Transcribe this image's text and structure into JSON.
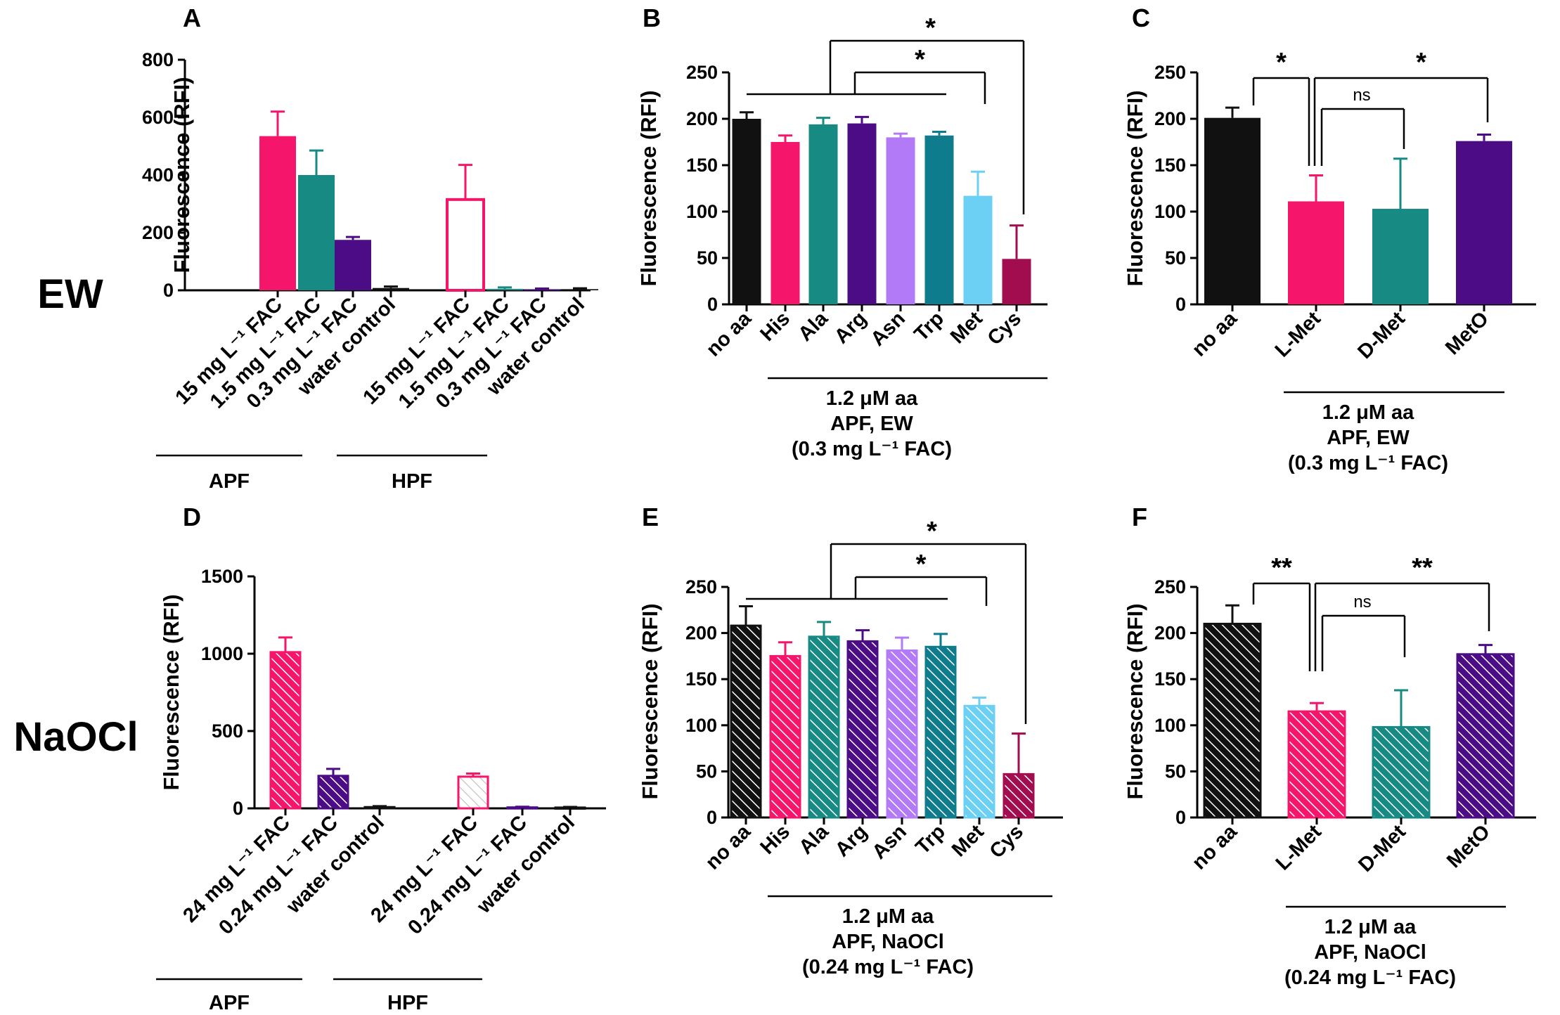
{
  "row_labels": {
    "top": "EW",
    "bottom": "NaOCl"
  },
  "colors": {
    "black": "#111111",
    "pink": "#f5166b",
    "teal": "#178a83",
    "purple": "#4b0c86",
    "lavender": "#b37af7",
    "darkteal": "#0e7c8c",
    "skyblue": "#6cd0f5",
    "maroon": "#a10d4f"
  },
  "chart_data": [
    {
      "id": "A",
      "type": "bar",
      "panel_label": "A",
      "ylabel": "Fluorescence (RFI)",
      "ylim": [
        0,
        800
      ],
      "yticks": [
        0,
        200,
        400,
        600,
        800
      ],
      "pattern": "solid",
      "categories": [
        "15 mg L⁻¹ FAC",
        "1.5 mg L⁻¹ FAC",
        "0.3 mg L⁻¹ FAC",
        "water control",
        "15 mg L⁻¹ FAC",
        "1.5 mg L⁻¹ FAC",
        "0.3 mg L⁻¹ FAC",
        "water control"
      ],
      "values": [
        535,
        400,
        175,
        8,
        315,
        5,
        3,
        4
      ],
      "errors": [
        85,
        85,
        10,
        5,
        120,
        5,
        3,
        3
      ],
      "bar_colors": [
        "#f5166b",
        "#178a83",
        "#4b0c86",
        "#111111",
        "#f5166b",
        "#178a83",
        "#4b0c86",
        "#111111"
      ],
      "outline_only": [
        false,
        false,
        false,
        false,
        true,
        false,
        false,
        false
      ],
      "groups": [
        {
          "label": "APF",
          "from": 0,
          "to": 3
        },
        {
          "label": "HPF",
          "from": 4,
          "to": 7
        }
      ]
    },
    {
      "id": "B",
      "type": "bar",
      "panel_label": "B",
      "ylabel": "Fluorescence (RFI)",
      "ylim": [
        0,
        250
      ],
      "yticks": [
        0,
        50,
        100,
        150,
        200,
        250
      ],
      "pattern": "solid",
      "categories": [
        "no aa",
        "His",
        "Ala",
        "Arg",
        "Asn",
        "Trp",
        "Met",
        "Cys"
      ],
      "values": [
        200,
        175,
        194,
        195,
        180,
        182,
        117,
        49
      ],
      "errors": [
        7,
        7,
        7,
        7,
        4,
        4,
        26,
        36
      ],
      "bar_colors": [
        "#111111",
        "#f5166b",
        "#178a83",
        "#4b0c86",
        "#b37af7",
        "#0e7c8c",
        "#6cd0f5",
        "#a10d4f"
      ],
      "caption": [
        "1.2 μM aa",
        "APF, EW",
        "(0.3 mg L⁻¹ FAC)"
      ],
      "significance": [
        {
          "label": "*"
        },
        {
          "label": "*"
        }
      ]
    },
    {
      "id": "C",
      "type": "bar",
      "panel_label": "C",
      "ylabel": "Fluorescence (RFI)",
      "ylim": [
        0,
        250
      ],
      "yticks": [
        0,
        50,
        100,
        150,
        200,
        250
      ],
      "pattern": "solid",
      "categories": [
        "no aa",
        "L-Met",
        "D-Met",
        "MetO"
      ],
      "values": [
        201,
        111,
        103,
        176
      ],
      "errors": [
        11,
        28,
        54,
        7
      ],
      "bar_colors": [
        "#111111",
        "#f5166b",
        "#178a83",
        "#4b0c86"
      ],
      "caption": [
        "1.2 μM aa",
        "APF, EW",
        "(0.3 mg L⁻¹ FAC)"
      ],
      "significance": [
        {
          "label": "*"
        },
        {
          "label": "ns"
        },
        {
          "label": "*"
        }
      ]
    },
    {
      "id": "D",
      "type": "bar",
      "panel_label": "D",
      "ylabel": "Fluorescence (RFI)",
      "ylim": [
        0,
        1500
      ],
      "yticks": [
        0,
        500,
        1000,
        1500
      ],
      "pattern": "hatched",
      "categories": [
        "24 mg L⁻¹ FAC",
        "0.24 mg L⁻¹ FAC",
        "water control",
        "24 mg L⁻¹ FAC",
        "0.24 mg L⁻¹ FAC",
        "water control"
      ],
      "values": [
        1010,
        210,
        8,
        205,
        6,
        5
      ],
      "errors": [
        95,
        45,
        6,
        20,
        4,
        4
      ],
      "bar_colors": [
        "#f5166b",
        "#4b0c86",
        "#111111",
        "#f5166b",
        "#4b0c86",
        "#111111"
      ],
      "outline_only": [
        false,
        false,
        false,
        true,
        false,
        false
      ],
      "groups": [
        {
          "label": "APF",
          "from": 0,
          "to": 2
        },
        {
          "label": "HPF",
          "from": 3,
          "to": 5
        }
      ]
    },
    {
      "id": "E",
      "type": "bar",
      "panel_label": "E",
      "ylabel": "Fluorescence (RFI)",
      "ylim": [
        0,
        250
      ],
      "yticks": [
        0,
        50,
        100,
        150,
        200,
        250
      ],
      "pattern": "hatched",
      "categories": [
        "no aa",
        "His",
        "Ala",
        "Arg",
        "Asn",
        "Trp",
        "Met",
        "Cys"
      ],
      "values": [
        208,
        175,
        196,
        191,
        181,
        185,
        121,
        47
      ],
      "errors": [
        21,
        15,
        16,
        12,
        14,
        14,
        9,
        44
      ],
      "bar_colors": [
        "#111111",
        "#f5166b",
        "#178a83",
        "#4b0c86",
        "#b37af7",
        "#0e7c8c",
        "#6cd0f5",
        "#a10d4f"
      ],
      "caption": [
        "1.2 μM aa",
        "APF, NaOCl",
        "(0.24 mg L⁻¹ FAC)"
      ],
      "significance": [
        {
          "label": "*"
        },
        {
          "label": "*"
        }
      ]
    },
    {
      "id": "F",
      "type": "bar",
      "panel_label": "F",
      "ylabel": "Fluorescence (RFI)",
      "ylim": [
        0,
        250
      ],
      "yticks": [
        0,
        50,
        100,
        150,
        200,
        250
      ],
      "pattern": "hatched",
      "categories": [
        "no aa",
        "L-Met",
        "D-Met",
        "MetO"
      ],
      "values": [
        210,
        115,
        98,
        177
      ],
      "errors": [
        20,
        9,
        40,
        10
      ],
      "bar_colors": [
        "#111111",
        "#f5166b",
        "#178a83",
        "#4b0c86"
      ],
      "caption": [
        "1.2 μM aa",
        "APF, NaOCl",
        "(0.24 mg L⁻¹ FAC)"
      ],
      "significance": [
        {
          "label": "**"
        },
        {
          "label": "ns"
        },
        {
          "label": "**"
        }
      ]
    }
  ]
}
